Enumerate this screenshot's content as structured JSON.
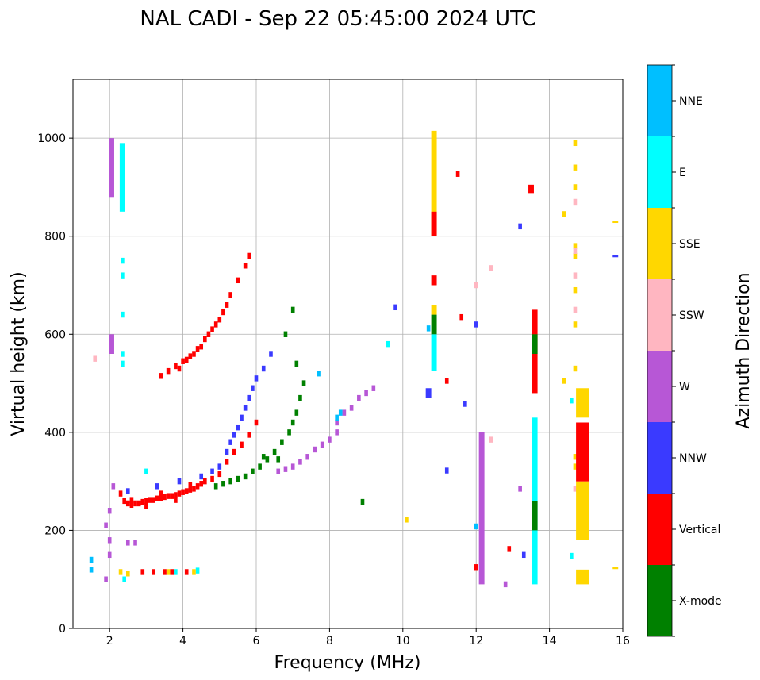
{
  "chart_data": {
    "type": "scatter",
    "title": "NAL CADI - Sep 22 05:45:00 2024 UTC",
    "xlabel": "Frequency (MHz)",
    "ylabel": "Virtual height (km)",
    "xlim": [
      1,
      16
    ],
    "ylim": [
      0,
      1120
    ],
    "xticks": [
      2,
      4,
      6,
      8,
      10,
      12,
      14,
      16
    ],
    "yticks": [
      0,
      200,
      400,
      600,
      800,
      1000
    ],
    "grid": true,
    "colorbar": {
      "label": "Azimuth Direction",
      "categories": [
        {
          "name": "X-mode",
          "color": "#008000"
        },
        {
          "name": "Vertical",
          "color": "#ff0000"
        },
        {
          "name": "NNW",
          "color": "#3a3aff"
        },
        {
          "name": "W",
          "color": "#b757d6"
        },
        {
          "name": "SSW",
          "color": "#ffb6c1"
        },
        {
          "name": "SSE",
          "color": "#ffd700"
        },
        {
          "name": "E",
          "color": "#00ffff"
        },
        {
          "name": "NNE",
          "color": "#00bfff"
        }
      ]
    },
    "traces": [
      {
        "category": 1,
        "points": [
          [
            2.3,
            275
          ],
          [
            2.4,
            260
          ],
          [
            2.5,
            255
          ],
          [
            2.6,
            252
          ],
          [
            2.7,
            255
          ],
          [
            2.8,
            255
          ],
          [
            2.9,
            258
          ],
          [
            3.0,
            260
          ],
          [
            3.1,
            262
          ],
          [
            3.2,
            262
          ],
          [
            3.3,
            265
          ],
          [
            3.4,
            265
          ],
          [
            3.5,
            268
          ],
          [
            3.6,
            270
          ],
          [
            3.7,
            270
          ],
          [
            3.8,
            272
          ],
          [
            3.9,
            275
          ],
          [
            4.0,
            278
          ],
          [
            4.1,
            280
          ],
          [
            4.2,
            283
          ],
          [
            4.3,
            285
          ],
          [
            4.4,
            290
          ],
          [
            4.5,
            295
          ],
          [
            4.6,
            300
          ],
          [
            4.8,
            305
          ],
          [
            5.0,
            315
          ],
          [
            5.2,
            340
          ],
          [
            5.4,
            360
          ],
          [
            5.6,
            375
          ],
          [
            5.8,
            395
          ],
          [
            6.0,
            420
          ],
          [
            2.6,
            262
          ],
          [
            3.0,
            250
          ],
          [
            3.4,
            275
          ],
          [
            3.8,
            262
          ],
          [
            4.2,
            292
          ]
        ]
      },
      {
        "category": 1,
        "points": [
          [
            3.4,
            515
          ],
          [
            3.6,
            525
          ],
          [
            3.8,
            535
          ],
          [
            3.9,
            530
          ],
          [
            4.0,
            545
          ],
          [
            4.1,
            548
          ],
          [
            4.2,
            555
          ],
          [
            4.3,
            560
          ],
          [
            4.4,
            570
          ],
          [
            4.5,
            575
          ],
          [
            4.6,
            590
          ],
          [
            4.7,
            600
          ],
          [
            4.8,
            610
          ],
          [
            4.9,
            620
          ],
          [
            5.0,
            630
          ],
          [
            5.1,
            645
          ],
          [
            5.2,
            660
          ],
          [
            5.3,
            680
          ],
          [
            5.5,
            710
          ],
          [
            5.7,
            740
          ],
          [
            5.8,
            760
          ]
        ]
      },
      {
        "category": 2,
        "points": [
          [
            4.5,
            310
          ],
          [
            4.8,
            320
          ],
          [
            5.0,
            330
          ],
          [
            5.2,
            360
          ],
          [
            5.3,
            380
          ],
          [
            5.4,
            395
          ],
          [
            5.5,
            410
          ],
          [
            5.6,
            430
          ],
          [
            5.7,
            450
          ],
          [
            5.8,
            470
          ],
          [
            5.9,
            490
          ],
          [
            6.0,
            510
          ],
          [
            6.2,
            530
          ],
          [
            6.4,
            560
          ],
          [
            2.5,
            280
          ],
          [
            3.3,
            290
          ],
          [
            3.9,
            300
          ]
        ]
      },
      {
        "category": 0,
        "points": [
          [
            4.9,
            290
          ],
          [
            5.1,
            295
          ],
          [
            5.3,
            300
          ],
          [
            5.5,
            305
          ],
          [
            5.7,
            310
          ],
          [
            5.9,
            320
          ],
          [
            6.1,
            330
          ],
          [
            6.3,
            345
          ],
          [
            6.5,
            360
          ],
          [
            6.7,
            380
          ],
          [
            6.9,
            400
          ],
          [
            7.0,
            420
          ],
          [
            7.1,
            440
          ],
          [
            7.2,
            470
          ],
          [
            7.3,
            500
          ],
          [
            7.1,
            540
          ],
          [
            6.8,
            600
          ],
          [
            7.0,
            650
          ],
          [
            6.6,
            345
          ],
          [
            6.2,
            350
          ],
          [
            8.9,
            258
          ]
        ]
      },
      {
        "category": 3,
        "points": [
          [
            6.6,
            320
          ],
          [
            6.8,
            325
          ],
          [
            7.0,
            330
          ],
          [
            7.2,
            340
          ],
          [
            7.4,
            350
          ],
          [
            7.6,
            365
          ],
          [
            7.8,
            375
          ],
          [
            8.0,
            385
          ],
          [
            8.2,
            400
          ],
          [
            8.2,
            420
          ],
          [
            8.4,
            440
          ],
          [
            8.6,
            450
          ],
          [
            8.8,
            470
          ],
          [
            9.0,
            480
          ],
          [
            9.2,
            490
          ],
          [
            1.9,
            100
          ],
          [
            2.0,
            150
          ],
          [
            2.0,
            180
          ],
          [
            1.9,
            210
          ],
          [
            2.0,
            240
          ],
          [
            2.1,
            290
          ],
          [
            2.5,
            175
          ],
          [
            2.7,
            175
          ],
          [
            12.8,
            90
          ],
          [
            13.2,
            285
          ]
        ]
      },
      {
        "category": 6,
        "points": [
          [
            2.4,
            100
          ],
          [
            3.8,
            115
          ],
          [
            4.4,
            118
          ],
          [
            2.35,
            540
          ],
          [
            2.35,
            560
          ],
          [
            2.35,
            640
          ],
          [
            2.35,
            720
          ],
          [
            2.35,
            750
          ],
          [
            3.0,
            320
          ],
          [
            9.6,
            580
          ],
          [
            14.6,
            465
          ],
          [
            14.6,
            148
          ]
        ]
      },
      {
        "category": 5,
        "points": [
          [
            2.3,
            115
          ],
          [
            2.5,
            112
          ],
          [
            3.6,
            115
          ],
          [
            4.3,
            115
          ],
          [
            10.1,
            222
          ],
          [
            14.7,
            990
          ],
          [
            14.7,
            940
          ],
          [
            14.7,
            900
          ],
          [
            14.7,
            780
          ],
          [
            14.7,
            760
          ],
          [
            14.7,
            690
          ],
          [
            14.7,
            620
          ],
          [
            14.7,
            530
          ],
          [
            14.7,
            350
          ],
          [
            14.7,
            330
          ],
          [
            14.4,
            845
          ],
          [
            14.4,
            505
          ]
        ]
      },
      {
        "category": 4,
        "points": [
          [
            14.7,
            870
          ],
          [
            14.7,
            770
          ],
          [
            14.7,
            720
          ],
          [
            14.7,
            650
          ],
          [
            14.7,
            285
          ],
          [
            12.4,
            735
          ],
          [
            12.4,
            385
          ],
          [
            12.0,
            700
          ],
          [
            1.6,
            550
          ]
        ]
      },
      {
        "category": 1,
        "points": [
          [
            2.9,
            115
          ],
          [
            3.2,
            115
          ],
          [
            3.5,
            115
          ],
          [
            3.7,
            115
          ],
          [
            4.1,
            115
          ],
          [
            11.2,
            505
          ],
          [
            11.5,
            927
          ],
          [
            11.6,
            635
          ],
          [
            13.6,
            515
          ],
          [
            12.0,
            125
          ],
          [
            12.9,
            162
          ]
        ]
      },
      {
        "category": 2,
        "points": [
          [
            12.0,
            620
          ],
          [
            13.2,
            820
          ],
          [
            9.8,
            655
          ],
          [
            11.7,
            458
          ],
          [
            11.2,
            322
          ],
          [
            13.3,
            150
          ],
          [
            2.05,
            950
          ],
          [
            2.05,
            980
          ]
        ]
      },
      {
        "category": 7,
        "points": [
          [
            8.3,
            440
          ],
          [
            8.2,
            430
          ],
          [
            7.7,
            520
          ],
          [
            10.7,
            612
          ],
          [
            12.0,
            208
          ],
          [
            1.5,
            140
          ],
          [
            1.5,
            120
          ]
        ]
      }
    ],
    "bars": [
      {
        "f": 10.85,
        "h": [
          800,
          1015
        ],
        "category": 5
      },
      {
        "f": 10.85,
        "h": [
          700,
          720
        ],
        "category": 1
      },
      {
        "f": 10.85,
        "h": [
          800,
          850
        ],
        "category": 1
      },
      {
        "f": 10.85,
        "h": [
          525,
          600
        ],
        "category": 6
      },
      {
        "f": 10.85,
        "h": [
          600,
          640
        ],
        "category": 0
      },
      {
        "f": 10.85,
        "h": [
          640,
          660
        ],
        "category": 5
      },
      {
        "f": 10.7,
        "h": [
          470,
          490
        ],
        "category": 2
      },
      {
        "f": 12.15,
        "h": [
          90,
          400
        ],
        "category": 3
      },
      {
        "f": 13.6,
        "h": [
          90,
          430
        ],
        "category": 6
      },
      {
        "f": 13.6,
        "h": [
          200,
          260
        ],
        "category": 0
      },
      {
        "f": 13.6,
        "h": [
          480,
          650
        ],
        "category": 1
      },
      {
        "f": 13.6,
        "h": [
          560,
          600
        ],
        "category": 0
      },
      {
        "f": 13.5,
        "h": [
          888,
          905
        ],
        "category": 1
      },
      {
        "f": 14.9,
        "h": [
          90,
          120
        ],
        "category": 5
      },
      {
        "f": 14.9,
        "h": [
          180,
          300
        ],
        "category": 5
      },
      {
        "f": 14.9,
        "h": [
          300,
          420
        ],
        "category": 1
      },
      {
        "f": 14.9,
        "h": [
          430,
          490
        ],
        "category": 5
      },
      {
        "f": 2.35,
        "h": [
          850,
          990
        ],
        "category": 6
      },
      {
        "f": 2.05,
        "h": [
          880,
          1000
        ],
        "category": 3
      },
      {
        "f": 2.05,
        "h": [
          560,
          600
        ],
        "category": 3
      },
      {
        "f": 15.8,
        "h": [
          121,
          125
        ],
        "category": 5
      },
      {
        "f": 15.8,
        "h": [
          757,
          761
        ],
        "category": 2
      },
      {
        "f": 15.8,
        "h": [
          827,
          831
        ],
        "category": 5
      }
    ]
  }
}
